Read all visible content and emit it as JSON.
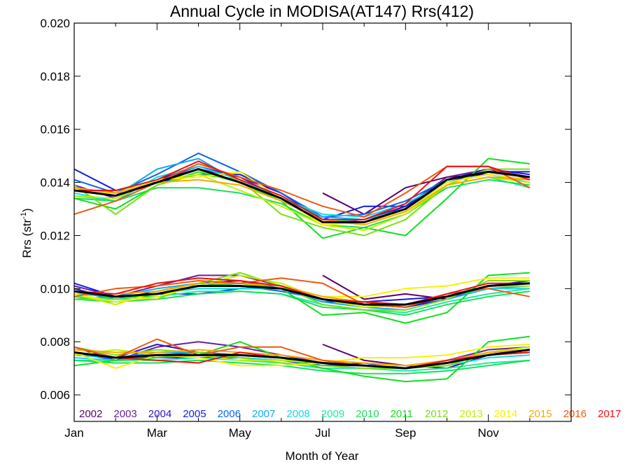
{
  "chart_data": {
    "type": "line",
    "title": "Annual Cycle in MODISA(AT147) Rrs(412)",
    "xlabel": "Month of Year",
    "ylabel": "Rrs (str",
    "ylabel_sup": "-1",
    "ylabel_close": ")",
    "xlim": [
      1,
      13
    ],
    "ylim": [
      0.005,
      0.02
    ],
    "x_ticks": [
      {
        "value": 1,
        "label": "Jan"
      },
      {
        "value": 3,
        "label": "Mar"
      },
      {
        "value": 5,
        "label": "May"
      },
      {
        "value": 7,
        "label": "Jul"
      },
      {
        "value": 9,
        "label": "Sep"
      },
      {
        "value": 11,
        "label": "Nov"
      }
    ],
    "y_ticks": [
      {
        "value": 0.006,
        "label": "0.006"
      },
      {
        "value": 0.008,
        "label": "0.008"
      },
      {
        "value": 0.01,
        "label": "0.010"
      },
      {
        "value": 0.012,
        "label": "0.012"
      },
      {
        "value": 0.014,
        "label": "0.014"
      },
      {
        "value": 0.016,
        "label": "0.016"
      },
      {
        "value": 0.018,
        "label": "0.018"
      },
      {
        "value": 0.02,
        "label": "0.020"
      }
    ],
    "grid": false,
    "legend_position": "bottom inside plot, single row",
    "x": [
      1,
      2,
      3,
      4,
      5,
      6,
      7,
      8,
      9,
      10,
      11,
      12
    ],
    "series": [
      {
        "name": "2002",
        "color": "#5a0070",
        "groups": [
          [
            null,
            null,
            null,
            null,
            null,
            null,
            0.0136,
            0.0128,
            0.0138,
            0.0142,
            0.0143,
            0.0141
          ],
          [
            null,
            null,
            null,
            null,
            null,
            null,
            0.0105,
            0.0096,
            0.0098,
            0.0096,
            0.0101,
            0.0102
          ],
          [
            null,
            null,
            null,
            null,
            null,
            null,
            0.0079,
            0.0073,
            0.0071,
            0.007,
            0.0075,
            0.0077
          ]
        ]
      },
      {
        "name": "2003",
        "color": "#6a1fa0",
        "groups": [
          [
            0.0139,
            0.0134,
            0.0141,
            0.0145,
            0.0142,
            0.0134,
            0.0125,
            0.0126,
            0.0131,
            0.0142,
            0.0145,
            0.0142
          ],
          [
            0.0101,
            0.0097,
            0.0101,
            0.0105,
            0.0105,
            0.0101,
            0.0096,
            0.0095,
            0.0093,
            0.0097,
            0.0101,
            0.0102
          ],
          [
            0.0078,
            0.0073,
            0.0078,
            0.008,
            0.0078,
            0.0075,
            0.0072,
            0.0071,
            0.007,
            0.0073,
            0.0077,
            0.0078
          ]
        ]
      },
      {
        "name": "2004",
        "color": "#2e14c8",
        "groups": [
          [
            0.0138,
            0.0136,
            0.0141,
            0.0146,
            0.0142,
            0.0136,
            0.0126,
            0.0125,
            0.0131,
            0.0141,
            0.0145,
            0.0143
          ],
          [
            0.01,
            0.0096,
            0.0099,
            0.0102,
            0.0103,
            0.01,
            0.0096,
            0.0094,
            0.0093,
            0.0096,
            0.0101,
            0.0102
          ],
          [
            0.0076,
            0.0074,
            0.0079,
            0.0076,
            0.0075,
            0.0074,
            0.0071,
            0.0071,
            0.007,
            0.0072,
            0.0076,
            0.0077
          ]
        ]
      },
      {
        "name": "2005",
        "color": "#0a1fe6",
        "groups": [
          [
            0.0145,
            0.0137,
            0.014,
            0.0143,
            0.0143,
            0.0136,
            0.0126,
            0.0131,
            0.0131,
            0.014,
            0.0144,
            0.0144
          ],
          [
            0.0102,
            0.0097,
            0.0098,
            0.0098,
            0.01,
            0.01,
            0.0095,
            0.0095,
            0.0096,
            0.0097,
            0.0101,
            0.0103
          ],
          [
            0.0078,
            0.0074,
            0.0074,
            0.0074,
            0.0074,
            0.0073,
            0.0071,
            0.0072,
            0.007,
            0.0072,
            0.0075,
            0.0077
          ]
        ]
      },
      {
        "name": "2006",
        "color": "#0a66ee",
        "groups": [
          [
            0.0141,
            0.0136,
            0.0143,
            0.0151,
            0.0144,
            0.0136,
            0.0127,
            0.0128,
            0.0133,
            0.0141,
            0.0144,
            0.0142
          ],
          [
            0.0099,
            0.0096,
            0.0098,
            0.0101,
            0.0101,
            0.0099,
            0.0096,
            0.0094,
            0.0094,
            0.0097,
            0.0101,
            0.0102
          ],
          [
            0.0076,
            0.0073,
            0.0075,
            0.0076,
            0.0075,
            0.0074,
            0.0072,
            0.0071,
            0.007,
            0.0072,
            0.0075,
            0.0076
          ]
        ]
      },
      {
        "name": "2007",
        "color": "#10aaf0",
        "groups": [
          [
            0.0137,
            0.0135,
            0.0145,
            0.0149,
            0.014,
            0.0134,
            0.0127,
            0.0126,
            0.013,
            0.014,
            0.0143,
            0.0141
          ],
          [
            0.0098,
            0.0097,
            0.01,
            0.0102,
            0.0101,
            0.01,
            0.0095,
            0.0093,
            0.0092,
            0.0096,
            0.01,
            0.0101
          ],
          [
            0.0075,
            0.0074,
            0.0076,
            0.0076,
            0.0074,
            0.0073,
            0.0072,
            0.0071,
            0.007,
            0.0072,
            0.0075,
            0.0076
          ]
        ]
      },
      {
        "name": "2008",
        "color": "#10dce6",
        "groups": [
          [
            0.0136,
            0.0133,
            0.0142,
            0.0146,
            0.0141,
            0.0134,
            0.0128,
            0.0127,
            0.0132,
            0.014,
            0.0143,
            0.014
          ],
          [
            0.0097,
            0.0096,
            0.0098,
            0.01,
            0.01,
            0.01,
            0.0096,
            0.0095,
            0.0094,
            0.0097,
            0.01,
            0.01
          ],
          [
            0.0074,
            0.0073,
            0.0074,
            0.0075,
            0.0074,
            0.0073,
            0.0072,
            0.0071,
            0.007,
            0.0071,
            0.0074,
            0.0075
          ]
        ]
      },
      {
        "name": "2009",
        "color": "#20e8a8",
        "groups": [
          [
            0.0135,
            0.0133,
            0.014,
            0.0145,
            0.014,
            0.0133,
            0.0126,
            0.0125,
            0.0129,
            0.0139,
            0.0142,
            0.0138
          ],
          [
            0.0097,
            0.0095,
            0.0097,
            0.0099,
            0.0099,
            0.0098,
            0.0094,
            0.0092,
            0.0091,
            0.0095,
            0.0098,
            0.01
          ],
          [
            0.0073,
            0.0073,
            0.0073,
            0.0074,
            0.0073,
            0.0072,
            0.007,
            0.007,
            0.0069,
            0.007,
            0.0072,
            0.0073
          ]
        ]
      },
      {
        "name": "2010",
        "color": "#18e05a",
        "groups": [
          [
            0.0134,
            0.0133,
            0.0138,
            0.0138,
            0.0136,
            0.0132,
            0.0124,
            0.0123,
            0.0128,
            0.0138,
            0.0141,
            0.0139
          ],
          [
            0.0096,
            0.0095,
            0.0096,
            0.0098,
            0.0099,
            0.0098,
            0.0093,
            0.0092,
            0.009,
            0.0094,
            0.0097,
            0.0099
          ],
          [
            0.0073,
            0.0072,
            0.0072,
            0.0073,
            0.0072,
            0.0071,
            0.0069,
            0.0068,
            0.0068,
            0.0069,
            0.0071,
            0.0073
          ]
        ]
      },
      {
        "name": "2011",
        "color": "#10e020",
        "groups": [
          [
            0.0134,
            0.013,
            0.0139,
            0.0144,
            0.014,
            0.0133,
            0.0119,
            0.0123,
            0.012,
            0.0134,
            0.0149,
            0.0147
          ],
          [
            0.0096,
            0.0097,
            0.0097,
            0.0101,
            0.0102,
            0.01,
            0.009,
            0.0091,
            0.0087,
            0.0091,
            0.0105,
            0.0106
          ],
          [
            0.0071,
            0.0073,
            0.0074,
            0.0075,
            0.008,
            0.0074,
            0.007,
            0.0067,
            0.0065,
            0.0066,
            0.008,
            0.0082
          ]
        ]
      },
      {
        "name": "2012",
        "color": "#78e010",
        "groups": [
          [
            0.0139,
            0.0128,
            0.0139,
            0.0143,
            0.0141,
            0.0128,
            0.0123,
            0.012,
            0.0126,
            0.0139,
            0.0145,
            0.0145
          ],
          [
            0.0096,
            0.0096,
            0.0096,
            0.0102,
            0.0106,
            0.0101,
            0.0094,
            0.0092,
            0.0092,
            0.0096,
            0.0103,
            0.0103
          ],
          [
            0.0078,
            0.0075,
            0.0077,
            0.0076,
            0.0074,
            0.0072,
            0.0071,
            0.007,
            0.007,
            0.0071,
            0.0076,
            0.0078
          ]
        ]
      },
      {
        "name": "2013",
        "color": "#c0f000",
        "groups": [
          [
            0.0135,
            0.0134,
            0.0141,
            0.0143,
            0.0137,
            0.0131,
            0.0124,
            0.0122,
            0.0128,
            0.0139,
            0.0142,
            0.014
          ],
          [
            0.0098,
            0.0094,
            0.0099,
            0.0101,
            0.0105,
            0.0102,
            0.0096,
            0.0093,
            0.0094,
            0.0097,
            0.0101,
            0.0101
          ],
          [
            0.0075,
            0.0077,
            0.0075,
            0.0075,
            0.0073,
            0.0073,
            0.0072,
            0.0071,
            0.0071,
            0.0072,
            0.0076,
            0.0078
          ]
        ]
      },
      {
        "name": "2014",
        "color": "#f8f000",
        "groups": [
          [
            0.0137,
            0.0136,
            0.0141,
            0.0142,
            0.0144,
            0.0134,
            0.0124,
            0.0125,
            0.0129,
            0.014,
            0.0143,
            0.0141
          ],
          [
            0.0098,
            0.0095,
            0.0097,
            0.0101,
            0.0101,
            0.01,
            0.0097,
            0.0097,
            0.01,
            0.0101,
            0.0104,
            0.0104
          ],
          [
            0.0076,
            0.007,
            0.0075,
            0.0074,
            0.0071,
            0.0071,
            0.0072,
            0.0074,
            0.0074,
            0.0075,
            0.0078,
            0.0079
          ]
        ]
      },
      {
        "name": "2015",
        "color": "#f8a800",
        "groups": [
          [
            0.0138,
            0.0136,
            0.014,
            0.0141,
            0.0139,
            0.0133,
            0.0126,
            0.0124,
            0.0129,
            0.0139,
            0.0142,
            0.0141
          ],
          [
            0.0099,
            0.0098,
            0.0099,
            0.0102,
            0.0102,
            0.0101,
            0.0097,
            0.0095,
            0.0094,
            0.0097,
            0.0101,
            0.0102
          ],
          [
            0.0077,
            0.0076,
            0.0076,
            0.0077,
            0.0076,
            0.0075,
            0.0073,
            0.0072,
            0.0071,
            0.0073,
            0.0076,
            0.0077
          ]
        ]
      },
      {
        "name": "2016",
        "color": "#f05810",
        "groups": [
          [
            0.0128,
            0.0133,
            0.014,
            0.0147,
            0.0142,
            0.0137,
            0.0131,
            0.0127,
            0.0136,
            0.0146,
            0.0146,
            0.0138
          ],
          [
            0.0097,
            0.01,
            0.0101,
            0.0103,
            0.0102,
            0.0104,
            0.0102,
            0.0094,
            0.0093,
            0.0098,
            0.01,
            0.0097
          ],
          [
            0.0078,
            0.0074,
            0.0081,
            0.0075,
            0.0078,
            0.0078,
            0.0073,
            0.0071,
            0.007,
            0.0073,
            0.0075,
            0.0076
          ]
        ]
      },
      {
        "name": "2017",
        "color": "#f01010",
        "groups": [
          [
            0.0137,
            0.0137,
            0.0141,
            0.0148,
            0.0141,
            0.0135,
            0.0126,
            0.0126,
            0.0132,
            0.0146,
            0.0146,
            0.0141
          ],
          [
            0.0099,
            0.0098,
            0.0102,
            0.0104,
            0.0103,
            0.0101,
            0.0096,
            0.0095,
            0.0094,
            0.0098,
            0.0102,
            0.0102
          ],
          [
            0.0076,
            0.0074,
            0.0073,
            0.0072,
            0.0076,
            0.0074,
            0.0072,
            0.0071,
            0.007,
            0.0073,
            0.0075,
            0.0076
          ]
        ]
      }
    ],
    "mean_series": {
      "color": "#000000",
      "groups": [
        [
          0.0137,
          0.0135,
          0.014,
          0.0145,
          0.014,
          0.0134,
          0.0125,
          0.0125,
          0.013,
          0.0141,
          0.0144,
          0.0142
        ],
        [
          0.0099,
          0.0097,
          0.0098,
          0.0101,
          0.0101,
          0.01,
          0.0096,
          0.0094,
          0.0094,
          0.0097,
          0.0101,
          0.0102
        ],
        [
          0.0076,
          0.0074,
          0.0075,
          0.0075,
          0.0075,
          0.0074,
          0.0072,
          0.0071,
          0.007,
          0.0072,
          0.0075,
          0.0077
        ]
      ]
    }
  }
}
